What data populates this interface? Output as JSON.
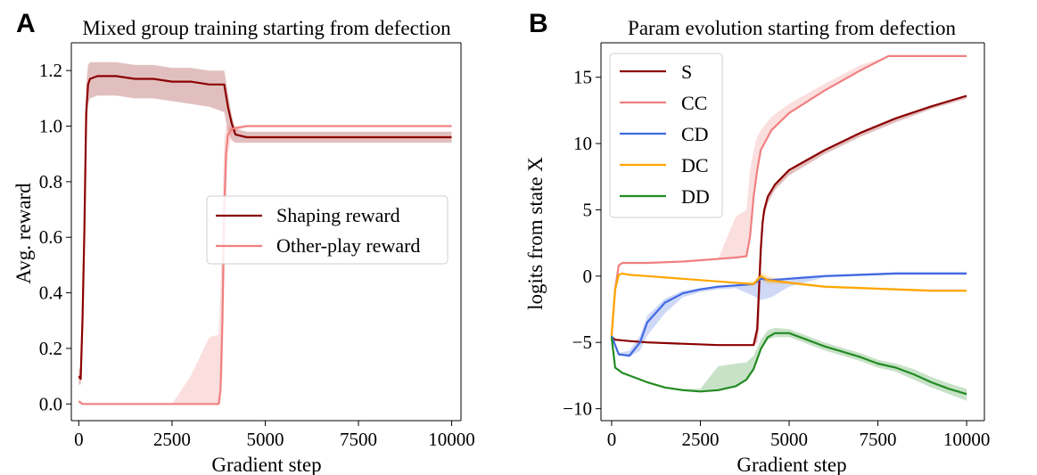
{
  "chart_data": [
    {
      "panel_label": "A",
      "type": "line",
      "title": "Mixed group training starting from defection",
      "xlabel": "Gradient step",
      "ylabel": "Avg. reward",
      "xlim": [
        -200,
        10250
      ],
      "ylim": [
        -0.06,
        1.3
      ],
      "xticks": [
        0,
        2500,
        5000,
        7500,
        10000
      ],
      "yticks": [
        0.0,
        0.2,
        0.4,
        0.6,
        0.8,
        1.0,
        1.2
      ],
      "xtick_labels": [
        "0",
        "2500",
        "5000",
        "7500",
        "10000"
      ],
      "ytick_labels": [
        "0.0",
        "0.2",
        "0.4",
        "0.6",
        "0.8",
        "1.0",
        "1.2"
      ],
      "grid": false,
      "legend": "center-right",
      "series": [
        {
          "name": "Shaping reward",
          "color": "#8b0000",
          "x": [
            0,
            50,
            100,
            150,
            200,
            250,
            300,
            500,
            1000,
            1500,
            2000,
            2500,
            3000,
            3500,
            3900,
            4000,
            4100,
            4200,
            4500,
            5000,
            6000,
            7000,
            8000,
            9000,
            10000
          ],
          "y": [
            0.1,
            0.09,
            0.3,
            0.62,
            1.05,
            1.15,
            1.17,
            1.18,
            1.18,
            1.17,
            1.17,
            1.16,
            1.16,
            1.15,
            1.15,
            1.07,
            1.01,
            0.97,
            0.96,
            0.96,
            0.96,
            0.96,
            0.96,
            0.96,
            0.96
          ],
          "band_lower": [
            0.07,
            0.07,
            0.2,
            0.5,
            0.95,
            1.08,
            1.1,
            1.11,
            1.11,
            1.1,
            1.1,
            1.09,
            1.08,
            1.07,
            1.05,
            0.98,
            0.95,
            0.94,
            0.94,
            0.94,
            0.94,
            0.94,
            0.94,
            0.94,
            0.94
          ],
          "band_upper": [
            0.13,
            0.12,
            0.4,
            0.75,
            1.15,
            1.22,
            1.23,
            1.23,
            1.23,
            1.22,
            1.22,
            1.21,
            1.21,
            1.2,
            1.2,
            1.12,
            1.04,
            0.99,
            0.98,
            0.98,
            0.98,
            0.98,
            0.98,
            0.98,
            0.98
          ]
        },
        {
          "name": "Other-play reward",
          "color": "#f08080",
          "x": [
            0,
            100,
            500,
            1000,
            2000,
            2500,
            3000,
            3500,
            3750,
            3800,
            3850,
            3900,
            3950,
            4000,
            4100,
            4500,
            5000,
            7500,
            10000
          ],
          "y": [
            0.01,
            0.0,
            0.0,
            0.0,
            0.0,
            0.0,
            0.0,
            0.0,
            0.0,
            0.05,
            0.3,
            0.7,
            0.9,
            0.97,
            0.99,
            1.0,
            1.0,
            1.0,
            1.0
          ],
          "band_lower": [
            0.0,
            0.0,
            0.0,
            0.0,
            0.0,
            0.0,
            0.0,
            0.0,
            0.0,
            0.0,
            0.1,
            0.4,
            0.7,
            0.9,
            0.97,
            1.0,
            1.0,
            1.0,
            1.0
          ],
          "band_upper": [
            0.02,
            0.0,
            0.0,
            0.0,
            0.0,
            0.0,
            0.1,
            0.24,
            0.25,
            0.4,
            0.7,
            0.95,
            1.0,
            1.0,
            1.0,
            1.0,
            1.0,
            1.0,
            1.0
          ]
        }
      ]
    },
    {
      "panel_label": "B",
      "type": "line",
      "title": "Param evolution starting from defection",
      "xlabel": "Gradient step",
      "ylabel": "logits from state X",
      "xlim": [
        -300,
        10500
      ],
      "ylim": [
        -10.9,
        17.6
      ],
      "xticks": [
        0,
        2500,
        5000,
        7500,
        10000
      ],
      "yticks": [
        -10,
        -5,
        0,
        5,
        10,
        15
      ],
      "xtick_labels": [
        "0",
        "2500",
        "5000",
        "7500",
        "10000"
      ],
      "ytick_labels": [
        "−10",
        "−5",
        "0",
        "5",
        "10",
        "15"
      ],
      "grid": false,
      "legend": "top-left",
      "series": [
        {
          "name": "S",
          "color": "#8b0000",
          "x": [
            0,
            100,
            500,
            1000,
            2000,
            3000,
            3500,
            4000,
            4100,
            4150,
            4200,
            4250,
            4300,
            4400,
            4600,
            5000,
            6000,
            7000,
            8000,
            9000,
            10000
          ],
          "y": [
            -4.6,
            -4.8,
            -4.9,
            -5.0,
            -5.1,
            -5.2,
            -5.2,
            -5.2,
            -4.0,
            -1.0,
            2.0,
            4.0,
            5.0,
            6.0,
            6.9,
            8.0,
            9.5,
            10.8,
            11.9,
            12.8,
            13.6
          ],
          "band_lower": [
            -4.6,
            -4.8,
            -4.9,
            -5.0,
            -5.1,
            -5.2,
            -5.2,
            -5.2,
            -5.0,
            -4.0,
            0.0,
            3.0,
            4.5,
            5.5,
            6.5,
            7.6,
            9.2,
            10.5,
            11.6,
            12.6,
            13.4
          ],
          "band_upper": [
            -4.6,
            -4.8,
            -4.9,
            -5.0,
            -5.1,
            -5.2,
            -5.2,
            -5.2,
            -4.0,
            -1.0,
            2.0,
            4.0,
            5.0,
            6.0,
            6.9,
            8.0,
            9.5,
            10.8,
            11.9,
            12.8,
            13.6
          ]
        },
        {
          "name": "CC",
          "color": "#f08080",
          "x": [
            0,
            100,
            200,
            300,
            500,
            1000,
            2000,
            3000,
            3500,
            3800,
            3900,
            4000,
            4100,
            4200,
            4500,
            5000,
            6000,
            7000,
            7800,
            8000,
            9000,
            10000
          ],
          "y": [
            -4.5,
            -1.0,
            0.8,
            1.0,
            1.0,
            1.0,
            1.1,
            1.3,
            1.4,
            1.5,
            3.0,
            6.0,
            8.0,
            9.5,
            11.0,
            12.3,
            14.0,
            15.5,
            16.6,
            16.6,
            16.6,
            16.6
          ],
          "band_lower": [
            -4.5,
            -1.0,
            0.8,
            1.0,
            1.0,
            1.0,
            1.1,
            1.3,
            1.4,
            1.5,
            3.0,
            6.0,
            8.0,
            9.5,
            11.0,
            12.3,
            14.0,
            15.5,
            16.6,
            16.6,
            16.6,
            16.6
          ],
          "band_upper": [
            -4.5,
            -1.0,
            0.8,
            1.0,
            1.0,
            1.0,
            1.1,
            1.3,
            4.5,
            5.0,
            8.0,
            9.5,
            10.5,
            11.0,
            12.0,
            13.0,
            14.5,
            15.9,
            16.6,
            16.6,
            16.6,
            16.6
          ]
        },
        {
          "name": "CD",
          "color": "#4169e1",
          "x": [
            0,
            200,
            500,
            800,
            1000,
            1500,
            2000,
            2500,
            3000,
            3500,
            4000,
            4200,
            4500,
            5000,
            6000,
            7000,
            8000,
            9000,
            10000
          ],
          "y": [
            -4.5,
            -5.9,
            -6.0,
            -5.0,
            -3.5,
            -2.0,
            -1.3,
            -1.0,
            -0.8,
            -0.7,
            -0.6,
            -0.2,
            -0.3,
            -0.2,
            0.0,
            0.1,
            0.2,
            0.2,
            0.2
          ],
          "band_lower": [
            -4.5,
            -5.9,
            -6.1,
            -5.6,
            -4.5,
            -2.8,
            -1.6,
            -1.2,
            -1.0,
            -0.9,
            -1.5,
            -1.8,
            -1.6,
            -0.8,
            -0.1,
            0.0,
            0.1,
            0.1,
            0.1
          ],
          "band_upper": [
            -4.5,
            -5.8,
            -5.6,
            -4.5,
            -3.0,
            -1.7,
            -1.1,
            -0.9,
            -0.7,
            -0.6,
            -0.5,
            -0.1,
            -0.2,
            -0.1,
            0.1,
            0.2,
            0.3,
            0.3,
            0.3
          ]
        },
        {
          "name": "DC",
          "color": "#ffa500",
          "x": [
            0,
            100,
            200,
            300,
            500,
            1000,
            2000,
            3000,
            3500,
            4000,
            4200,
            4400,
            5000,
            6000,
            7000,
            8000,
            9000,
            10000
          ],
          "y": [
            -4.5,
            -1.0,
            0.1,
            0.2,
            0.1,
            0.0,
            -0.2,
            -0.4,
            -0.5,
            -0.6,
            0.0,
            -0.3,
            -0.5,
            -0.8,
            -0.9,
            -1.0,
            -1.1,
            -1.1
          ],
          "band_lower": [
            -4.5,
            -1.0,
            0.1,
            0.2,
            0.1,
            0.0,
            -0.2,
            -0.4,
            -0.5,
            -0.7,
            -0.3,
            -0.6,
            -0.6,
            -0.9,
            -1.0,
            -1.1,
            -1.2,
            -1.2
          ],
          "band_upper": [
            -4.5,
            -1.0,
            0.1,
            0.2,
            0.1,
            0.0,
            -0.2,
            -0.4,
            -0.5,
            -0.4,
            0.3,
            0.0,
            -0.4,
            -0.7,
            -0.8,
            -0.9,
            -1.0,
            -1.0
          ]
        },
        {
          "name": "DD",
          "color": "#228b22",
          "x": [
            0,
            100,
            300,
            500,
            1000,
            1500,
            2000,
            2500,
            3000,
            3500,
            3800,
            4000,
            4200,
            4400,
            4600,
            5000,
            5500,
            6000,
            6500,
            7000,
            7500,
            8000,
            8500,
            9000,
            9500,
            10000
          ],
          "y": [
            -4.6,
            -6.9,
            -7.3,
            -7.5,
            -8.0,
            -8.4,
            -8.6,
            -8.7,
            -8.6,
            -8.3,
            -7.8,
            -7.0,
            -5.5,
            -4.6,
            -4.3,
            -4.3,
            -4.8,
            -5.3,
            -5.7,
            -6.1,
            -6.6,
            -6.9,
            -7.4,
            -8.0,
            -8.5,
            -8.9
          ],
          "band_lower": [
            -4.6,
            -6.9,
            -7.3,
            -7.5,
            -8.0,
            -8.4,
            -8.6,
            -8.7,
            -8.6,
            -8.3,
            -7.8,
            -7.0,
            -5.5,
            -4.8,
            -4.6,
            -4.6,
            -5.1,
            -5.6,
            -6.0,
            -6.4,
            -6.9,
            -7.2,
            -7.8,
            -8.4,
            -8.9,
            -9.4
          ],
          "band_upper": [
            -4.6,
            -6.9,
            -7.3,
            -7.5,
            -8.0,
            -8.4,
            -8.5,
            -8.5,
            -6.8,
            -6.6,
            -6.5,
            -6.0,
            -4.8,
            -4.1,
            -3.9,
            -4.0,
            -4.5,
            -5.0,
            -5.4,
            -5.8,
            -6.3,
            -6.6,
            -7.0,
            -7.6,
            -8.1,
            -8.5
          ]
        }
      ]
    }
  ]
}
